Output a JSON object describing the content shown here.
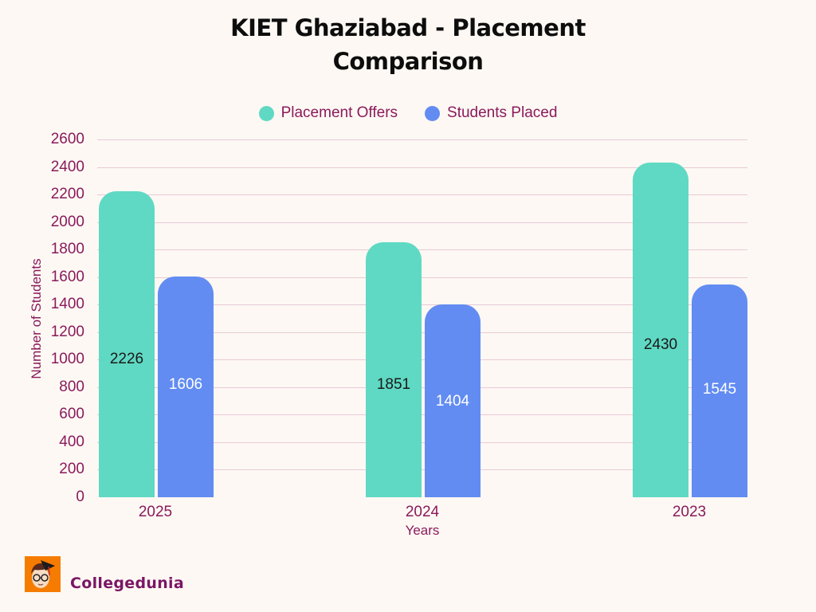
{
  "title": {
    "line1": "KIET Ghaziabad -  Placement",
    "line2": "Comparison"
  },
  "legend": [
    {
      "label": "Placement Offers",
      "color": "#5fd9c3"
    },
    {
      "label": "Students Placed",
      "color": "#628cf2"
    }
  ],
  "axes": {
    "y_title": "Number of Students",
    "x_title": "Years",
    "y_ticks": [
      "0",
      "200",
      "400",
      "600",
      "800",
      "1000",
      "1200",
      "1400",
      "1600",
      "1800",
      "2000",
      "2200",
      "2400",
      "2600"
    ]
  },
  "brand": {
    "name": "Collegedunia"
  },
  "chart_data": {
    "type": "bar",
    "title": "KIET Ghaziabad -  Placement Comparison",
    "xlabel": "Years",
    "ylabel": "Number of Students",
    "categories": [
      "2025",
      "2024",
      "2023"
    ],
    "series": [
      {
        "name": "Placement Offers",
        "color": "#5fd9c3",
        "values": [
          2226,
          1851,
          2430
        ]
      },
      {
        "name": "Students Placed",
        "color": "#628cf2",
        "values": [
          1606,
          1404,
          1545
        ]
      }
    ],
    "ylim": [
      0,
      2600
    ],
    "ytick_step": 200,
    "grid": true,
    "legend_position": "top"
  }
}
